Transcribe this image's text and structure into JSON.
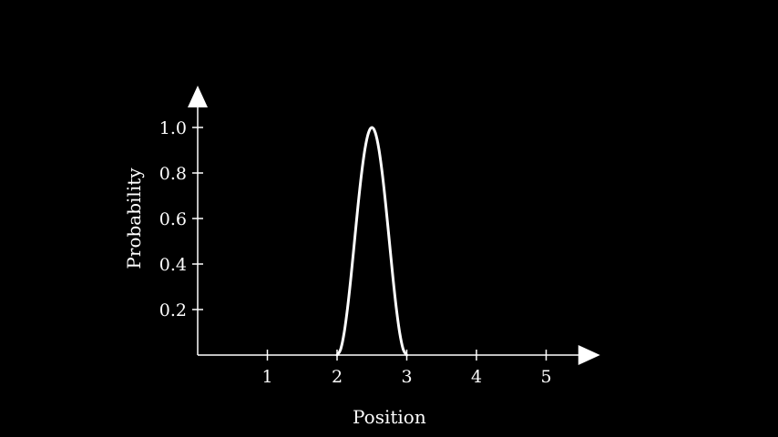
{
  "chart_data": {
    "type": "line",
    "title": "",
    "xlabel": "Position",
    "ylabel": "Probability",
    "xlim": [
      0,
      5.5
    ],
    "ylim": [
      0,
      1.1
    ],
    "xticks": [
      "1",
      "2",
      "3",
      "4",
      "5"
    ],
    "yticks": [
      "0.2",
      "0.4",
      "0.6",
      "0.8",
      "1.0"
    ],
    "grid": false,
    "legend": "none",
    "axis_color": "#ffffff",
    "background_color": "#000000",
    "series": [
      {
        "color": "#ffffff",
        "x": [
          2.0,
          2.05,
          2.1,
          2.15,
          2.2,
          2.25,
          2.3,
          2.35,
          2.4,
          2.45,
          2.5,
          2.55,
          2.6,
          2.65,
          2.7,
          2.75,
          2.8,
          2.85,
          2.9,
          2.95,
          3.0
        ],
        "y": [
          0.0,
          0.024,
          0.095,
          0.206,
          0.345,
          0.5,
          0.655,
          0.794,
          0.905,
          0.976,
          1.0,
          0.976,
          0.905,
          0.794,
          0.655,
          0.5,
          0.345,
          0.206,
          0.095,
          0.024,
          0.0
        ]
      }
    ]
  }
}
